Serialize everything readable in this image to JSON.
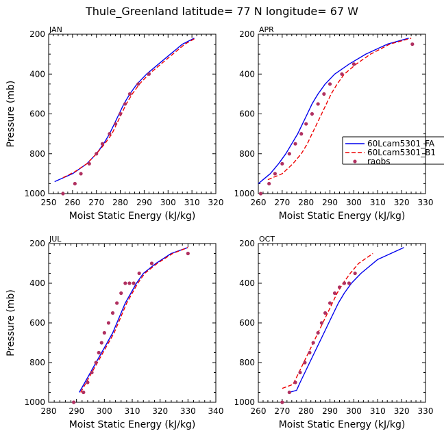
{
  "title": "Thule_Greenland   latitude= 77 N longitude= 67 W",
  "colors": {
    "fa": "#0000ee",
    "b1": "#ee0000",
    "raobs": "#b03060",
    "axis": "#000000"
  },
  "legend": {
    "entries": [
      {
        "label": "60Lcam5301_FA",
        "style": "solid",
        "color": "#0000ee"
      },
      {
        "label": "60Lcam5301_B1",
        "style": "dashed",
        "color": "#ee0000"
      },
      {
        "label": "raobs",
        "style": "dot",
        "color": "#b03060"
      }
    ]
  },
  "chart_data": [
    {
      "type": "line",
      "panel": "JAN",
      "xlabel": "Moist Static Energy (kJ/kg)",
      "ylabel": "Pressure (mb)",
      "xlim": [
        250,
        320
      ],
      "ylim": [
        1000,
        200
      ],
      "xticks": [
        250,
        260,
        270,
        280,
        290,
        300,
        310,
        320
      ],
      "yticks": [
        200,
        400,
        600,
        800,
        1000
      ],
      "series": [
        {
          "name": "60Lcam5301_FA",
          "kind": "solid",
          "x": [
            252.5,
            260,
            266,
            270,
            273,
            275.5,
            277.5,
            279.5,
            281.5,
            284,
            287,
            291,
            296,
            301,
            306,
            311
          ],
          "y": [
            940,
            900,
            850,
            800,
            750,
            700,
            650,
            600,
            550,
            500,
            450,
            400,
            350,
            300,
            250,
            220
          ]
        },
        {
          "name": "60Lcam5301_B1",
          "kind": "dashed",
          "x": [
            256,
            261,
            266,
            270,
            273.5,
            276.5,
            278.5,
            280.5,
            282.5,
            285,
            288,
            292,
            297,
            302,
            307,
            311.5
          ],
          "y": [
            920,
            890,
            850,
            800,
            750,
            700,
            650,
            600,
            550,
            500,
            450,
            400,
            350,
            300,
            250,
            220
          ]
        },
        {
          "name": "raobs",
          "kind": "dots",
          "x": [
            256,
            261,
            263.5,
            267,
            270,
            272.5,
            275.5,
            278,
            280,
            282,
            284,
            287.5,
            292
          ],
          "y": [
            1000,
            950,
            900,
            850,
            800,
            750,
            700,
            650,
            600,
            550,
            500,
            450,
            400
          ]
        }
      ]
    },
    {
      "type": "line",
      "panel": "APR",
      "xlabel": "Moist Static Energy (kJ/kg)",
      "ylabel": "",
      "xlim": [
        260,
        330
      ],
      "ylim": [
        1000,
        200
      ],
      "xticks": [
        260,
        270,
        280,
        290,
        300,
        310,
        320,
        330
      ],
      "yticks": [
        200,
        400,
        600,
        800,
        1000
      ],
      "series": [
        {
          "name": "60Lcam5301_FA",
          "kind": "solid",
          "x": [
            260,
            265,
            268.5,
            271.5,
            274,
            276.5,
            278.5,
            280.5,
            282.5,
            285,
            288,
            292,
            298,
            305,
            314,
            323
          ],
          "y": [
            950,
            900,
            850,
            800,
            750,
            700,
            650,
            600,
            550,
            500,
            450,
            400,
            350,
            300,
            250,
            220
          ]
        },
        {
          "name": "60Lcam5301_B1",
          "kind": "dashed",
          "x": [
            264,
            270,
            274.5,
            278,
            280.5,
            282.5,
            284.5,
            286.5,
            288.5,
            290.5,
            293,
            296,
            301,
            307,
            315,
            324
          ],
          "y": [
            930,
            900,
            850,
            800,
            750,
            700,
            650,
            600,
            550,
            500,
            450,
            400,
            350,
            300,
            250,
            220
          ]
        },
        {
          "name": "raobs",
          "kind": "dots",
          "x": [
            261,
            264.5,
            267,
            270,
            273,
            275.5,
            278,
            280,
            282.5,
            285,
            287.5,
            290,
            295,
            300,
            324.5
          ],
          "y": [
            1000,
            950,
            900,
            850,
            800,
            750,
            700,
            650,
            600,
            550,
            500,
            450,
            400,
            350,
            250
          ]
        }
      ]
    },
    {
      "type": "line",
      "panel": "JUL",
      "xlabel": "Moist Static Energy (kJ/kg)",
      "ylabel": "Pressure (mb)",
      "xlim": [
        280,
        340
      ],
      "ylim": [
        1000,
        200
      ],
      "xticks": [
        280,
        290,
        300,
        310,
        320,
        330,
        340
      ],
      "yticks": [
        200,
        400,
        600,
        800,
        1000
      ],
      "series": [
        {
          "name": "60Lcam5301_FA",
          "kind": "solid",
          "x": [
            291,
            293,
            295,
            297,
            299,
            301,
            303,
            304.5,
            306,
            307.5,
            309.5,
            311.5,
            314,
            318.5,
            324,
            330
          ],
          "y": [
            950,
            900,
            850,
            800,
            750,
            700,
            650,
            600,
            550,
            500,
            450,
            400,
            350,
            300,
            250,
            220
          ]
        },
        {
          "name": "60Lcam5301_B1",
          "kind": "dashed",
          "x": [
            291.5,
            293.5,
            295.5,
            297.5,
            299.5,
            301.5,
            303.5,
            305,
            306.5,
            308,
            310,
            312,
            314.5,
            319,
            324.5,
            330
          ],
          "y": [
            950,
            900,
            850,
            800,
            750,
            700,
            650,
            600,
            550,
            500,
            450,
            400,
            350,
            300,
            250,
            220
          ]
        },
        {
          "name": "raobs",
          "kind": "dots",
          "x": [
            289,
            292.5,
            294,
            295.5,
            297,
            298,
            299,
            300,
            301.5,
            303,
            304.5,
            306,
            307.5,
            309,
            310.5,
            312.5,
            317,
            330
          ],
          "y": [
            1000,
            950,
            900,
            850,
            800,
            750,
            700,
            650,
            600,
            550,
            500,
            450,
            400,
            400,
            400,
            350,
            300,
            250
          ]
        }
      ]
    },
    {
      "type": "line",
      "panel": "OCT",
      "xlabel": "Moist Static Energy (kJ/kg)",
      "ylabel": "",
      "xlim": [
        260,
        330
      ],
      "ylim": [
        1000,
        200
      ],
      "xticks": [
        260,
        270,
        280,
        290,
        300,
        310,
        320,
        330
      ],
      "yticks": [
        200,
        400,
        600,
        800,
        1000
      ],
      "series": [
        {
          "name": "60Lcam5301_FA",
          "kind": "solid",
          "x": [
            273,
            276,
            277.5,
            279.5,
            281.5,
            283.5,
            285.5,
            287.5,
            289.5,
            291.5,
            293.5,
            296,
            299,
            303,
            310,
            321
          ],
          "y": [
            950,
            940,
            900,
            850,
            800,
            750,
            700,
            650,
            600,
            550,
            500,
            450,
            400,
            350,
            280,
            220
          ]
        },
        {
          "name": "60Lcam5301_B1",
          "kind": "dashed",
          "x": [
            270,
            274.5,
            277,
            279,
            281,
            283,
            285,
            287,
            289,
            291,
            293,
            295.5,
            298.5,
            302,
            308
          ],
          "y": [
            930,
            910,
            850,
            800,
            750,
            700,
            650,
            600,
            550,
            500,
            450,
            400,
            350,
            300,
            250
          ]
        },
        {
          "name": "raobs",
          "kind": "dots",
          "x": [
            270,
            273,
            275.5,
            277.5,
            279.5,
            281.5,
            283,
            285,
            286.5,
            288,
            290,
            292,
            294,
            296,
            298,
            300.5
          ],
          "y": [
            1000,
            950,
            900,
            850,
            800,
            750,
            700,
            650,
            600,
            550,
            500,
            450,
            420,
            400,
            400,
            350
          ]
        }
      ]
    }
  ]
}
